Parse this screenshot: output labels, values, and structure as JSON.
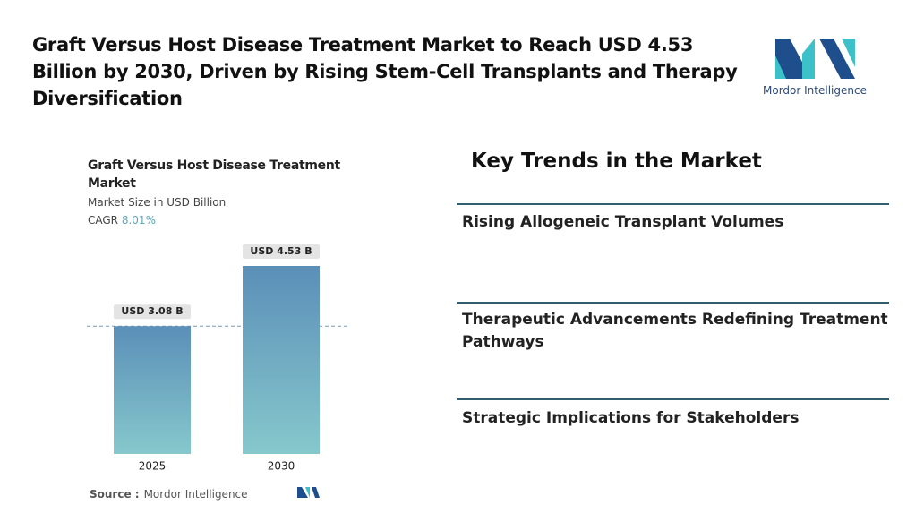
{
  "header": {
    "title": "Graft Versus Host Disease Treatment Market to Reach USD 4.53 Billion by 2030, Driven by Rising Stem-Cell Transplants and Therapy Diversification",
    "brand": "Mordor Intelligence"
  },
  "chart_data": {
    "type": "bar",
    "title": "Graft Versus Host Disease Treatment Market",
    "subtitle": "Market Size in USD Billion",
    "cagr": {
      "label": "CAGR",
      "value": "8.01%"
    },
    "categories": [
      "2025",
      "2030"
    ],
    "values": [
      3.08,
      4.53
    ],
    "value_labels": [
      "USD 3.08 B",
      "USD 4.53 B"
    ],
    "gradient": [
      "#5b8fb8",
      "#86c8cc"
    ],
    "source": {
      "label": "Source :",
      "value": "Mordor Intelligence"
    }
  },
  "trends": {
    "title": "Key Trends in the Market",
    "items": [
      "Rising Allogeneic Transplant Volumes",
      "Therapeutic Advancements Redefining Treatment Pathways",
      "Strategic Implications for Stakeholders"
    ]
  }
}
